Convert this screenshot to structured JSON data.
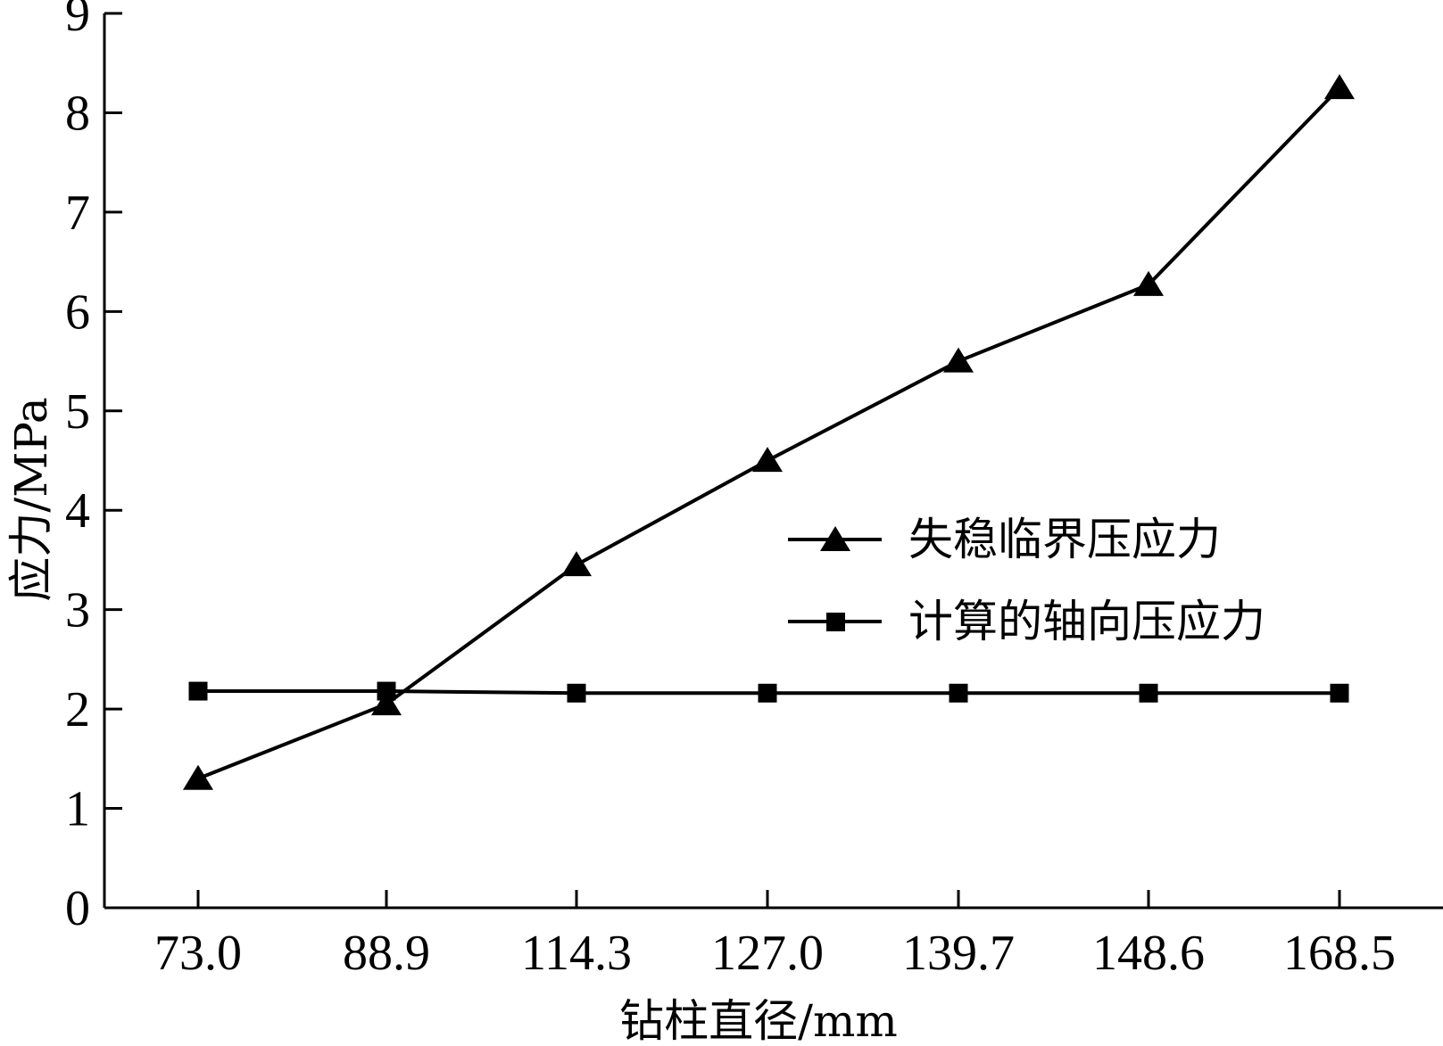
{
  "chart_data": {
    "type": "line",
    "categories": [
      "73.0",
      "88.9",
      "114.3",
      "127.0",
      "139.7",
      "148.6",
      "168.5"
    ],
    "series": [
      {
        "name": "失稳临界压应力",
        "marker": "triangle",
        "values": [
          1.3,
          2.05,
          3.45,
          4.5,
          5.5,
          6.27,
          8.25
        ]
      },
      {
        "name": "计算的轴向压应力",
        "marker": "square",
        "values": [
          2.18,
          2.18,
          2.16,
          2.16,
          2.16,
          2.16,
          2.16
        ]
      }
    ],
    "title": "",
    "xlabel": "钻柱直径/mm",
    "ylabel": "应力/MPa",
    "ylim": [
      0,
      9
    ],
    "yticks": [
      "0",
      "1",
      "2",
      "3",
      "4",
      "5",
      "6",
      "7",
      "8",
      "9"
    ],
    "grid": false,
    "legend_position": "right-middle",
    "colors": {
      "line": "#000000",
      "background": "#ffffff"
    }
  }
}
